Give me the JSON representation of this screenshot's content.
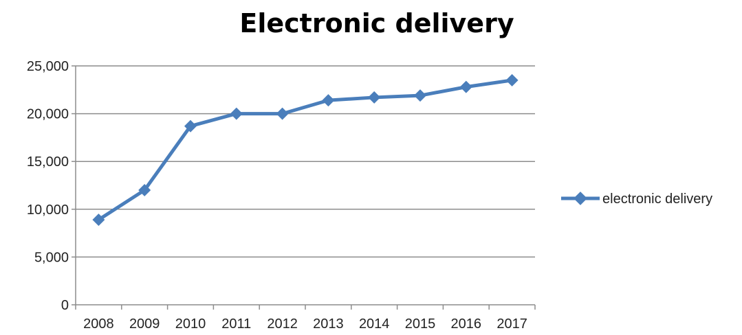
{
  "chart_data": {
    "type": "line",
    "title": "Electronic delivery",
    "categories": [
      "2008",
      "2009",
      "2010",
      "2011",
      "2012",
      "2013",
      "2014",
      "2015",
      "2016",
      "2017"
    ],
    "series": [
      {
        "name": "electronic delivery",
        "values": [
          8900,
          12000,
          18700,
          20000,
          20000,
          21400,
          21700,
          21900,
          22800,
          23500
        ]
      }
    ],
    "y_ticks": [
      "0",
      "5,000",
      "10,000",
      "15,000",
      "20,000",
      "25,000"
    ],
    "ylim": [
      0,
      25000
    ],
    "grid": "horizontal",
    "legend_position": "right",
    "colors": {
      "series": "#4a7ebb",
      "grid": "#8c8c8c",
      "axis": "#8c8c8c"
    }
  }
}
